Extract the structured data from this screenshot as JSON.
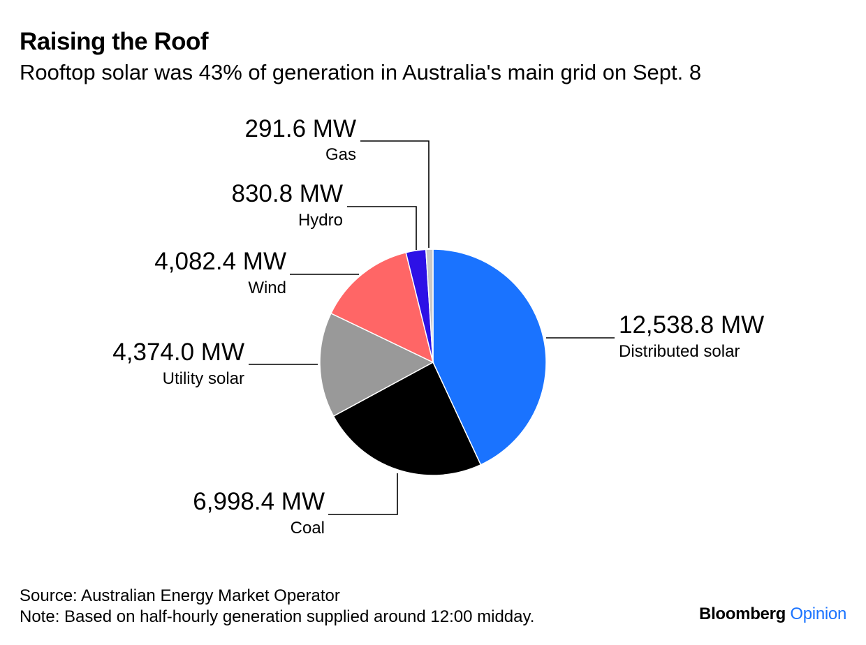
{
  "header": {
    "title": "Raising the Roof",
    "subtitle": "Rooftop solar was 43% of generation in Australia's main grid on Sept. 8"
  },
  "chart_data": {
    "type": "pie",
    "title": "Raising the Roof",
    "subtitle": "Rooftop solar was 43% of generation in Australia's main grid on Sept. 8",
    "unit": "MW",
    "slices": [
      {
        "name": "Distributed solar",
        "value": 12538.8,
        "value_label": "12,538.8 MW",
        "color": "#1a73ff"
      },
      {
        "name": "Coal",
        "value": 6998.4,
        "value_label": "6,998.4 MW",
        "color": "#000000"
      },
      {
        "name": "Utility solar",
        "value": 4374.0,
        "value_label": "4,374.0 MW",
        "color": "#999999"
      },
      {
        "name": "Wind",
        "value": 4082.4,
        "value_label": "4,082.4 MW",
        "color": "#ff6666"
      },
      {
        "name": "Hydro",
        "value": 830.8,
        "value_label": "830.8 MW",
        "color": "#2d11e6"
      },
      {
        "name": "Gas",
        "value": 291.6,
        "value_label": "291.6 MW",
        "color": "#c8c8c8"
      }
    ]
  },
  "footer": {
    "source": "Source: Australian Energy Market Operator",
    "note": "Note: Based on half-hourly generation supplied around 12:00 midday."
  },
  "brand": {
    "name": "Bloomberg",
    "product": "Opinion",
    "product_color": "#1a73ff"
  }
}
